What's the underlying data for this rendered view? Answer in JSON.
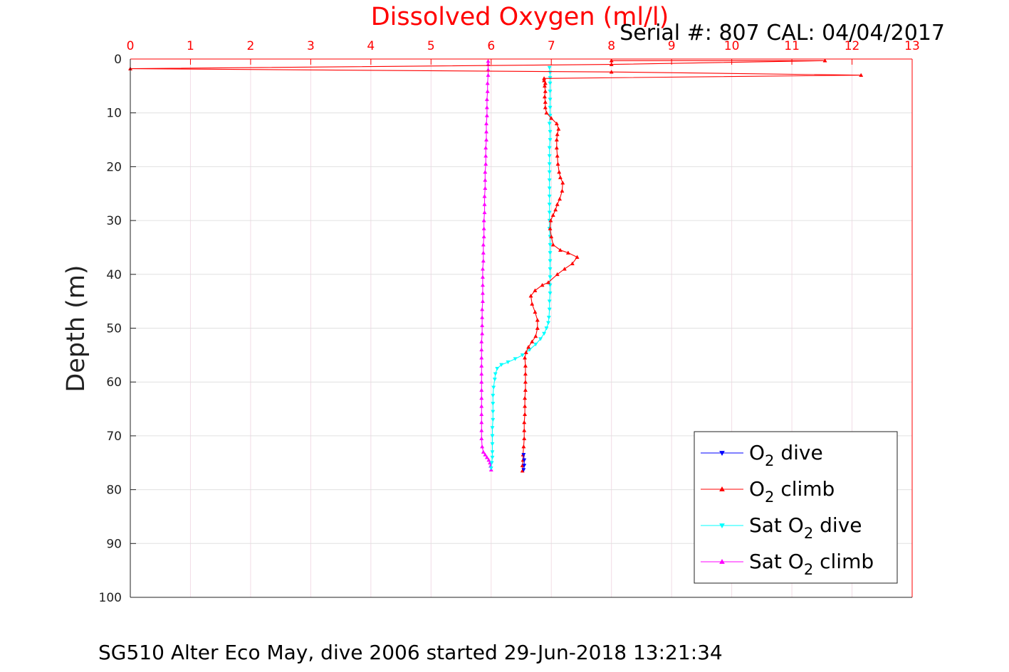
{
  "chart_data": {
    "type": "line",
    "title": "Dissolved Oxygen (ml/l)",
    "subtitle": "Serial #: 807  CAL: 04/04/2017",
    "caption": "SG510 Alter Eco May, dive 2006 started 29-Jun-2018 13:21:34",
    "xlabel": "Dissolved Oxygen (ml/l)",
    "ylabel": "Depth (m)",
    "x_axis_position": "top",
    "y_axis_reversed": true,
    "xlim": [
      0,
      13
    ],
    "ylim": [
      0,
      100
    ],
    "xticks": [
      0,
      1,
      2,
      3,
      4,
      5,
      6,
      7,
      8,
      9,
      10,
      11,
      12,
      13
    ],
    "yticks": [
      0,
      10,
      20,
      30,
      40,
      50,
      60,
      70,
      80,
      90,
      100
    ],
    "grid": true,
    "legend_position": "bottom-right",
    "colors": {
      "o2_dive": "#0000ff",
      "o2_climb": "#ff0000",
      "sat_dive": "#00ffff",
      "sat_climb": "#ff00ff",
      "grid": "#e0e0e0",
      "x_axis": "#ff0000",
      "title": "#ff0000"
    },
    "series": [
      {
        "key": "o2_dive",
        "name_main": "O",
        "name_sub": "2",
        "name_rest": " dive",
        "color": "#0000ff",
        "marker": "triangle-down",
        "points": [
          [
            6.54,
            73.5
          ],
          [
            6.55,
            74.5
          ],
          [
            6.55,
            75.5
          ],
          [
            6.54,
            76.3
          ]
        ]
      },
      {
        "key": "o2_climb",
        "name_main": "O",
        "name_sub": "2",
        "name_rest": " climb",
        "color": "#ff0000",
        "marker": "triangle-up",
        "points": [
          [
            6.52,
            76.5
          ],
          [
            6.52,
            75.5
          ],
          [
            6.53,
            74.5
          ],
          [
            6.53,
            73.5
          ],
          [
            6.54,
            72
          ],
          [
            6.55,
            70.5
          ],
          [
            6.55,
            69
          ],
          [
            6.55,
            67.5
          ],
          [
            6.56,
            66
          ],
          [
            6.56,
            64.5
          ],
          [
            6.56,
            63
          ],
          [
            6.57,
            61.5
          ],
          [
            6.57,
            60
          ],
          [
            6.57,
            58.5
          ],
          [
            6.57,
            57
          ],
          [
            6.56,
            55.5
          ],
          [
            6.58,
            54.5
          ],
          [
            6.62,
            53.5
          ],
          [
            6.68,
            52.5
          ],
          [
            6.74,
            51.5
          ],
          [
            6.77,
            50
          ],
          [
            6.77,
            48.5
          ],
          [
            6.73,
            47
          ],
          [
            6.68,
            45.5
          ],
          [
            6.66,
            44
          ],
          [
            6.73,
            43
          ],
          [
            6.85,
            42
          ],
          [
            6.95,
            41.5
          ],
          [
            7.1,
            40
          ],
          [
            7.22,
            39
          ],
          [
            7.35,
            38
          ],
          [
            7.43,
            36.8
          ],
          [
            7.28,
            36
          ],
          [
            7.15,
            35.5
          ],
          [
            7.03,
            34.5
          ],
          [
            7.0,
            33
          ],
          [
            6.98,
            31.5
          ],
          [
            6.99,
            30
          ],
          [
            7.03,
            29
          ],
          [
            7.07,
            28
          ],
          [
            7.1,
            27
          ],
          [
            7.14,
            26
          ],
          [
            7.18,
            24.5
          ],
          [
            7.19,
            23
          ],
          [
            7.15,
            22
          ],
          [
            7.13,
            21
          ],
          [
            7.11,
            19.5
          ],
          [
            7.1,
            18
          ],
          [
            7.09,
            16.5
          ],
          [
            7.09,
            15
          ],
          [
            7.1,
            14
          ],
          [
            7.12,
            13
          ],
          [
            7.09,
            12
          ],
          [
            7.0,
            11
          ],
          [
            6.92,
            10
          ],
          [
            6.9,
            9
          ],
          [
            6.9,
            8
          ],
          [
            6.89,
            7
          ],
          [
            6.9,
            6
          ],
          [
            6.89,
            5
          ],
          [
            6.9,
            4.5
          ],
          [
            6.88,
            4
          ],
          [
            6.88,
            3.6
          ],
          [
            12.15,
            3.0
          ],
          [
            8.0,
            2.4
          ],
          [
            0.0,
            1.8
          ],
          [
            8.0,
            1.0
          ],
          [
            11.55,
            0.3
          ],
          [
            8.0,
            0.3
          ]
        ]
      },
      {
        "key": "sat_dive",
        "name_main": "Sat O",
        "name_sub": "2",
        "name_rest": " dive",
        "color": "#00ffff",
        "marker": "triangle-down",
        "points": [
          [
            6.97,
            1.6
          ],
          [
            6.98,
            2.5
          ],
          [
            6.98,
            3.5
          ],
          [
            6.98,
            4.5
          ],
          [
            6.98,
            6
          ],
          [
            6.98,
            7.5
          ],
          [
            6.98,
            9
          ],
          [
            6.98,
            10.5
          ],
          [
            6.97,
            12
          ],
          [
            6.98,
            13.5
          ],
          [
            6.98,
            15
          ],
          [
            6.97,
            16.5
          ],
          [
            6.97,
            18
          ],
          [
            6.97,
            19.5
          ],
          [
            6.97,
            21
          ],
          [
            6.97,
            22.5
          ],
          [
            6.97,
            24
          ],
          [
            6.97,
            25.5
          ],
          [
            6.97,
            27
          ],
          [
            6.97,
            28.5
          ],
          [
            6.97,
            30
          ],
          [
            6.97,
            31.5
          ],
          [
            6.98,
            33
          ],
          [
            6.98,
            34.5
          ],
          [
            6.98,
            36
          ],
          [
            6.98,
            37.5
          ],
          [
            6.98,
            39
          ],
          [
            6.98,
            40.5
          ],
          [
            6.98,
            42
          ],
          [
            6.98,
            43.5
          ],
          [
            6.97,
            45
          ],
          [
            6.97,
            46.5
          ],
          [
            6.96,
            48
          ],
          [
            6.95,
            49
          ],
          [
            6.92,
            50
          ],
          [
            6.88,
            51
          ],
          [
            6.82,
            52
          ],
          [
            6.74,
            53
          ],
          [
            6.64,
            54
          ],
          [
            6.52,
            55
          ],
          [
            6.4,
            55.7
          ],
          [
            6.28,
            56.3
          ],
          [
            6.17,
            56.8
          ],
          [
            6.1,
            57.5
          ],
          [
            6.07,
            58.5
          ],
          [
            6.06,
            59.5
          ],
          [
            6.04,
            61
          ],
          [
            6.03,
            62.5
          ],
          [
            6.03,
            64
          ],
          [
            6.03,
            65.5
          ],
          [
            6.03,
            67
          ],
          [
            6.02,
            68.5
          ],
          [
            6.02,
            70
          ],
          [
            6.02,
            71.5
          ],
          [
            6.02,
            73
          ],
          [
            6.02,
            74
          ],
          [
            6.01,
            75
          ],
          [
            6.0,
            76
          ]
        ]
      },
      {
        "key": "sat_climb",
        "name_main": "Sat O",
        "name_sub": "2",
        "name_rest": " climb",
        "color": "#ff00ff",
        "marker": "triangle-up",
        "points": [
          [
            6.0,
            76.3
          ],
          [
            5.99,
            75.6
          ],
          [
            5.98,
            75
          ],
          [
            5.96,
            74.5
          ],
          [
            5.93,
            74
          ],
          [
            5.9,
            73.5
          ],
          [
            5.87,
            73
          ],
          [
            5.85,
            72
          ],
          [
            5.84,
            70.5
          ],
          [
            5.84,
            69
          ],
          [
            5.84,
            67.5
          ],
          [
            5.84,
            66
          ],
          [
            5.84,
            64.5
          ],
          [
            5.84,
            63
          ],
          [
            5.84,
            61.5
          ],
          [
            5.84,
            60
          ],
          [
            5.84,
            58.5
          ],
          [
            5.84,
            57
          ],
          [
            5.84,
            55.5
          ],
          [
            5.84,
            54
          ],
          [
            5.84,
            52.5
          ],
          [
            5.85,
            51
          ],
          [
            5.85,
            49.5
          ],
          [
            5.85,
            48
          ],
          [
            5.85,
            46.5
          ],
          [
            5.86,
            45
          ],
          [
            5.86,
            43.5
          ],
          [
            5.86,
            42
          ],
          [
            5.86,
            40.5
          ],
          [
            5.86,
            39
          ],
          [
            5.87,
            37.5
          ],
          [
            5.87,
            36
          ],
          [
            5.87,
            34.5
          ],
          [
            5.88,
            33
          ],
          [
            5.88,
            31.5
          ],
          [
            5.88,
            30
          ],
          [
            5.89,
            28.5
          ],
          [
            5.89,
            27
          ],
          [
            5.89,
            25.5
          ],
          [
            5.9,
            24
          ],
          [
            5.9,
            22.5
          ],
          [
            5.9,
            21
          ],
          [
            5.91,
            19.5
          ],
          [
            5.91,
            18
          ],
          [
            5.91,
            16.5
          ],
          [
            5.92,
            15
          ],
          [
            5.92,
            13.5
          ],
          [
            5.92,
            12
          ],
          [
            5.93,
            10.5
          ],
          [
            5.93,
            9
          ],
          [
            5.93,
            7.5
          ],
          [
            5.94,
            6
          ],
          [
            5.94,
            4.5
          ],
          [
            5.95,
            3
          ],
          [
            5.95,
            2
          ],
          [
            5.95,
            1
          ],
          [
            5.95,
            0.4
          ]
        ]
      }
    ]
  }
}
